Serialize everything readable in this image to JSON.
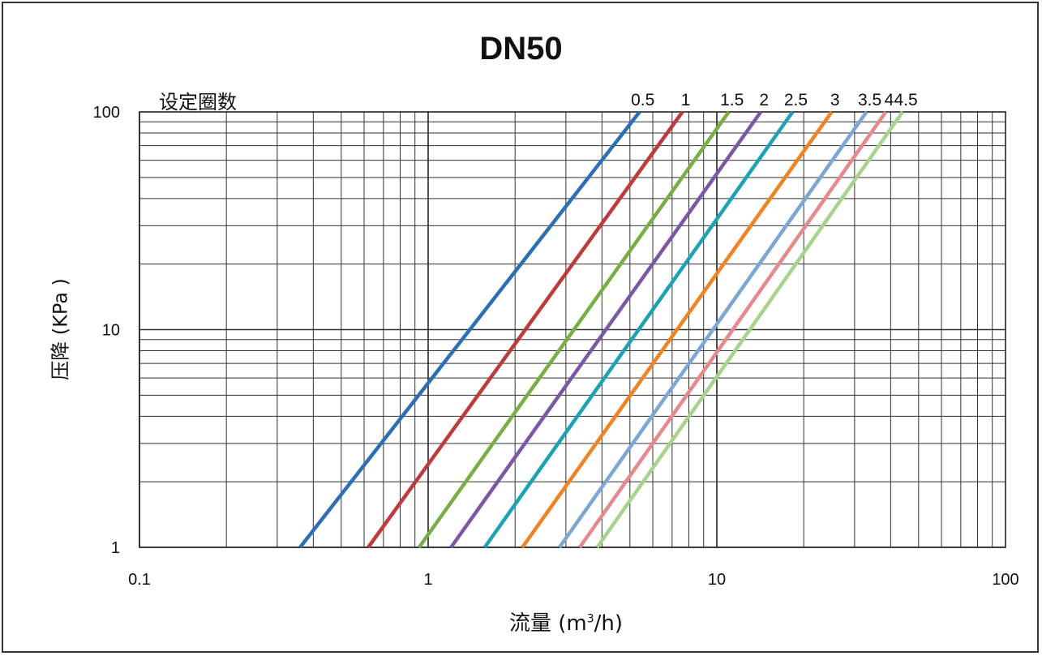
{
  "chart_data": {
    "type": "line",
    "title": "DN50",
    "xlabel_prefix": "流量 (m",
    "xlabel_sup": "3",
    "xlabel_suffix": "/h)",
    "ylabel": "压降 (KPa )",
    "legend_title": "设定圈数",
    "x_scale": "log",
    "y_scale": "log",
    "xlim": [
      0.1,
      100
    ],
    "ylim": [
      1,
      100
    ],
    "x_ticks": [
      0.1,
      1,
      10,
      100
    ],
    "x_tick_labels": [
      "0.1",
      "1",
      "10",
      "100"
    ],
    "y_ticks": [
      1,
      10,
      100
    ],
    "y_tick_labels": [
      "1",
      "10",
      "100"
    ],
    "grid": true,
    "series": [
      {
        "name": "0.5",
        "color": "#2a6fb7",
        "points": [
          [
            0.36,
            1
          ],
          [
            5.4,
            100
          ]
        ]
      },
      {
        "name": "1",
        "color": "#c0393b",
        "points": [
          [
            0.62,
            1
          ],
          [
            7.6,
            100
          ]
        ]
      },
      {
        "name": "1.5",
        "color": "#76b043",
        "points": [
          [
            0.93,
            1
          ],
          [
            11.0,
            100
          ]
        ]
      },
      {
        "name": "2",
        "color": "#7b57a8",
        "points": [
          [
            1.2,
            1
          ],
          [
            14.2,
            100
          ]
        ]
      },
      {
        "name": "2.5",
        "color": "#1aa3b8",
        "points": [
          [
            1.57,
            1
          ],
          [
            18.3,
            100
          ]
        ]
      },
      {
        "name": "3",
        "color": "#f3831f",
        "points": [
          [
            2.12,
            1
          ],
          [
            25.0,
            100
          ]
        ]
      },
      {
        "name": "3.5",
        "color": "#7aa6d8",
        "points": [
          [
            2.85,
            1
          ],
          [
            33.0,
            100
          ]
        ]
      },
      {
        "name": "4",
        "color": "#e8888c",
        "points": [
          [
            3.35,
            1
          ],
          [
            38.5,
            100
          ]
        ]
      },
      {
        "name": "4.5",
        "color": "#a6d48a",
        "points": [
          [
            3.85,
            1
          ],
          [
            44.0,
            100
          ]
        ]
      }
    ]
  }
}
